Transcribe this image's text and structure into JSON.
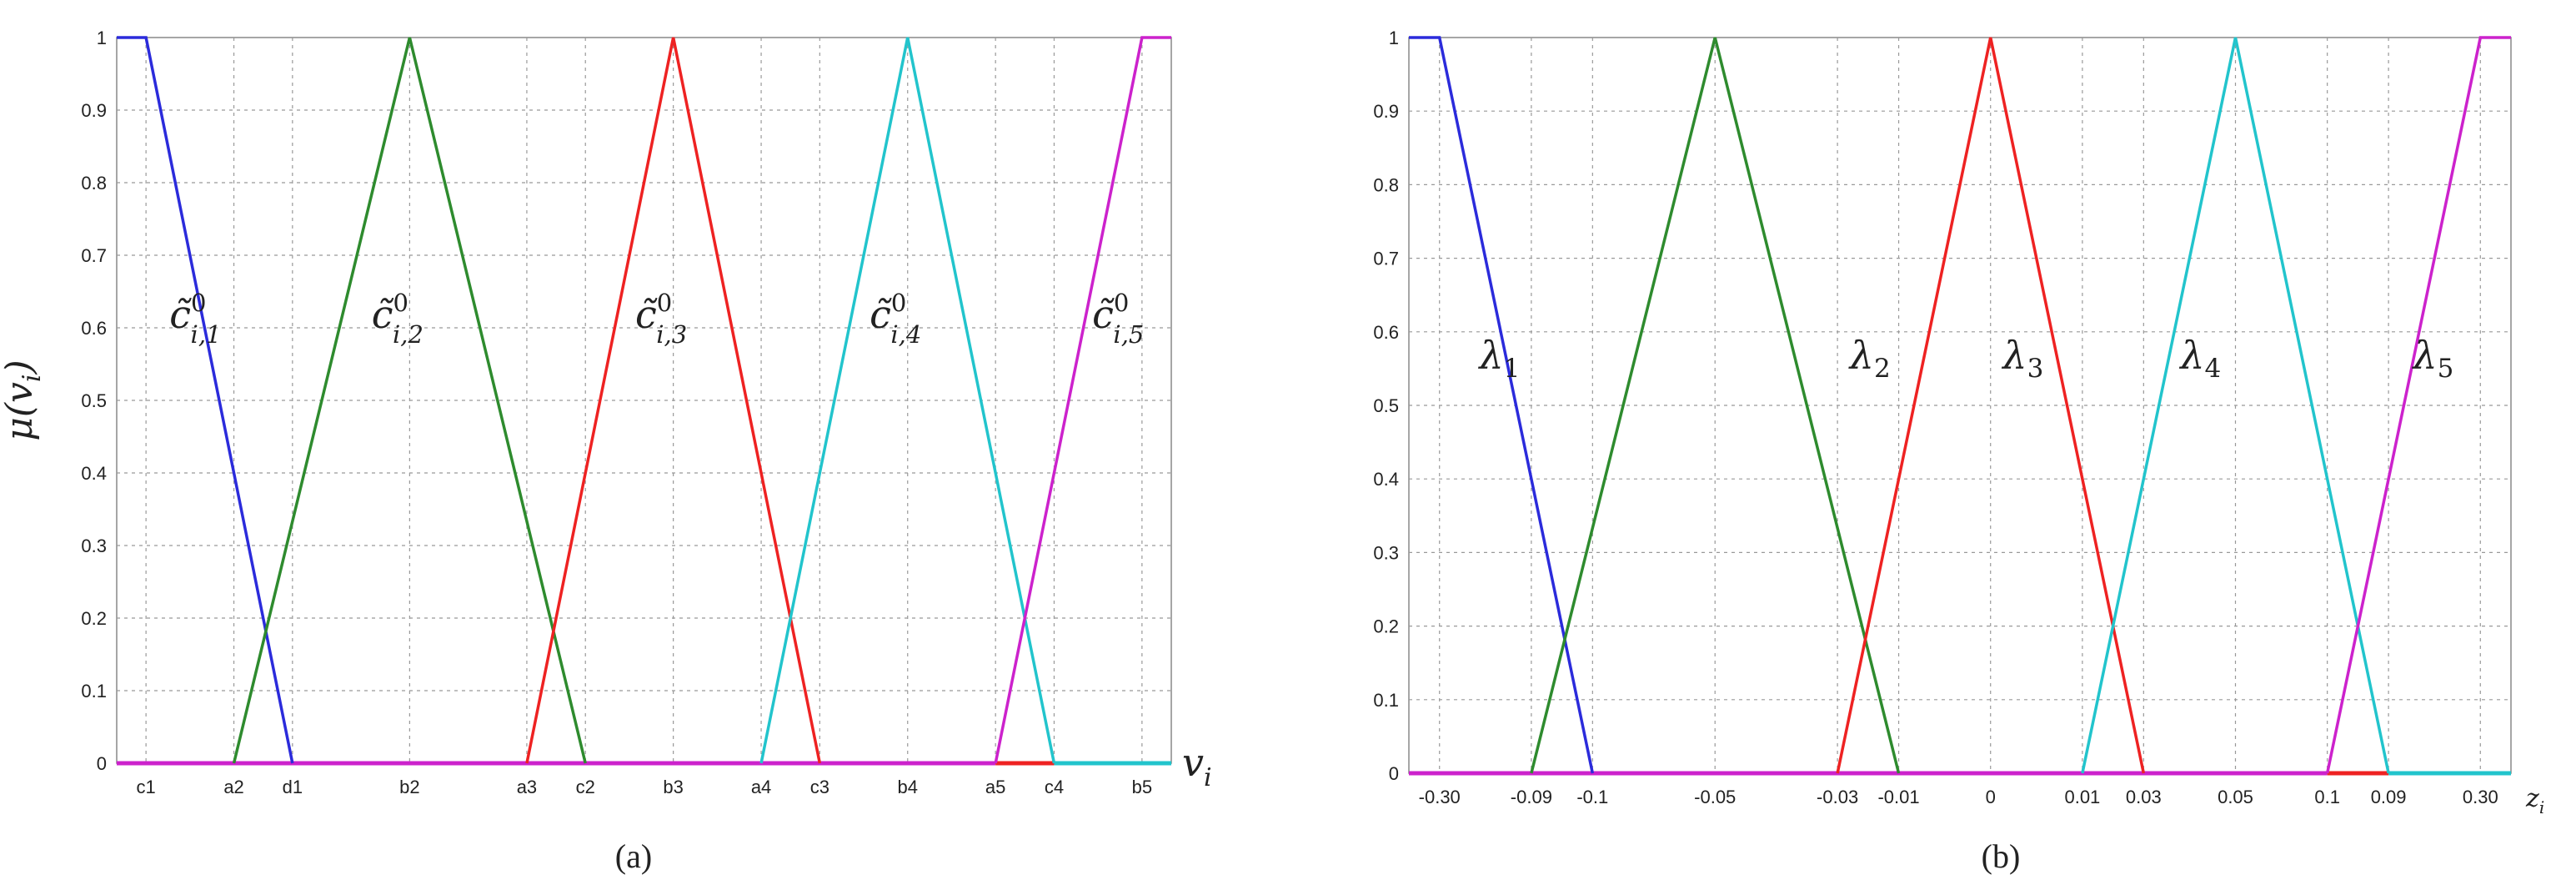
{
  "chart_data": [
    {
      "type": "line",
      "ylabel": "μ(v_i)",
      "xlabel": "v_i",
      "caption": "(a)",
      "ylim": [
        0,
        1
      ],
      "xlim": [
        0,
        18
      ],
      "grid": true,
      "yticks": [
        "0",
        "0.1",
        "0.2",
        "0.3",
        "0.4",
        "0.5",
        "0.6",
        "0.7",
        "0.8",
        "0.9",
        "1"
      ],
      "xticks": [
        {
          "x": 0.5,
          "label": "c1"
        },
        {
          "x": 2.0,
          "label": "a2"
        },
        {
          "x": 3.0,
          "label": "d1"
        },
        {
          "x": 5.0,
          "label": "b2"
        },
        {
          "x": 7.0,
          "label": "a3"
        },
        {
          "x": 8.0,
          "label": "c2"
        },
        {
          "x": 9.5,
          "label": "b3"
        },
        {
          "x": 11.0,
          "label": "a4"
        },
        {
          "x": 12.0,
          "label": "c3"
        },
        {
          "x": 13.5,
          "label": "b4"
        },
        {
          "x": 15.0,
          "label": "a5"
        },
        {
          "x": 16.0,
          "label": "c4"
        },
        {
          "x": 17.5,
          "label": "b5"
        }
      ],
      "series": [
        {
          "name": "c̃⁰ i,1",
          "color": "#2b2bdb",
          "x": [
            0,
            0.5,
            3.0
          ],
          "y": [
            1,
            1,
            0
          ]
        },
        {
          "name": "c̃⁰ i,2",
          "color": "#2e8b2e",
          "x": [
            2.0,
            5.0,
            8.0
          ],
          "y": [
            0,
            1,
            0
          ]
        },
        {
          "name": "c̃⁰ i,3",
          "color": "#ee2222",
          "x": [
            7.0,
            9.5,
            12.0
          ],
          "y": [
            0,
            1,
            0
          ]
        },
        {
          "name": "c̃⁰ i,4",
          "color": "#22c4cc",
          "x": [
            11.0,
            13.5,
            16.0
          ],
          "y": [
            0,
            1,
            0
          ]
        },
        {
          "name": "c̃⁰ i,5",
          "color": "#cc22cc",
          "x": [
            15.0,
            17.5,
            18.0
          ],
          "y": [
            0,
            1,
            1
          ]
        }
      ],
      "baseline_segments": [
        {
          "color": "#cc22cc",
          "x": [
            0,
            15.0
          ]
        },
        {
          "color": "#ee2222",
          "x": [
            15.0,
            16.0
          ]
        },
        {
          "color": "#22c4cc",
          "x": [
            16.0,
            18.0
          ]
        }
      ],
      "labels": [
        {
          "text": "c̃",
          "sup": "0",
          "sub": "i,1",
          "x": 0.9,
          "y": 0.6
        },
        {
          "text": "c̃",
          "sup": "0",
          "sub": "i,2",
          "x": 4.35,
          "y": 0.6
        },
        {
          "text": "c̃",
          "sup": "0",
          "sub": "i,3",
          "x": 8.85,
          "y": 0.6
        },
        {
          "text": "c̃",
          "sup": "0",
          "sub": "i,4",
          "x": 12.85,
          "y": 0.6
        },
        {
          "text": "c̃",
          "sup": "0",
          "sub": "i,5",
          "x": 16.65,
          "y": 0.6
        }
      ]
    },
    {
      "type": "line",
      "ylabel": "",
      "xlabel": "z_i",
      "caption": "(b)",
      "ylim": [
        0,
        1
      ],
      "xlim": [
        0,
        18
      ],
      "grid": true,
      "yticks": [
        "0",
        "0.1",
        "0.2",
        "0.3",
        "0.4",
        "0.5",
        "0.6",
        "0.7",
        "0.8",
        "0.9",
        "1"
      ],
      "xticks": [
        {
          "x": 0.5,
          "label": "-0.30"
        },
        {
          "x": 2.0,
          "label": "-0.09"
        },
        {
          "x": 3.0,
          "label": "-0.1"
        },
        {
          "x": 5.0,
          "label": "-0.05"
        },
        {
          "x": 7.0,
          "label": "-0.03"
        },
        {
          "x": 8.0,
          "label": "-0.01"
        },
        {
          "x": 9.5,
          "label": "0"
        },
        {
          "x": 11.0,
          "label": "0.01"
        },
        {
          "x": 12.0,
          "label": "0.03"
        },
        {
          "x": 13.5,
          "label": "0.05"
        },
        {
          "x": 15.0,
          "label": "0.1"
        },
        {
          "x": 16.0,
          "label": "0.09"
        },
        {
          "x": 17.5,
          "label": "0.30"
        }
      ],
      "series": [
        {
          "name": "λ1",
          "color": "#2b2bdb",
          "x": [
            0,
            0.5,
            3.0
          ],
          "y": [
            1,
            1,
            0
          ]
        },
        {
          "name": "λ2",
          "color": "#2e8b2e",
          "x": [
            2.0,
            5.0,
            8.0
          ],
          "y": [
            0,
            1,
            0
          ]
        },
        {
          "name": "λ3",
          "color": "#ee2222",
          "x": [
            7.0,
            9.5,
            12.0
          ],
          "y": [
            0,
            1,
            0
          ]
        },
        {
          "name": "λ4",
          "color": "#22c4cc",
          "x": [
            11.0,
            13.5,
            16.0
          ],
          "y": [
            0,
            1,
            0
          ]
        },
        {
          "name": "λ5",
          "color": "#cc22cc",
          "x": [
            15.0,
            17.5,
            18.0
          ],
          "y": [
            0,
            1,
            1
          ]
        }
      ],
      "baseline_segments": [
        {
          "color": "#cc22cc",
          "x": [
            0,
            15.0
          ]
        },
        {
          "color": "#ee2222",
          "x": [
            15.0,
            16.0
          ]
        },
        {
          "color": "#22c4cc",
          "x": [
            16.0,
            18.0
          ]
        }
      ],
      "labels": [
        {
          "text": "λ",
          "sub": "1",
          "x": 1.15,
          "y": 0.55
        },
        {
          "text": "λ",
          "sub": "2",
          "x": 7.2,
          "y": 0.55
        },
        {
          "text": "λ",
          "sub": "3",
          "x": 9.7,
          "y": 0.55
        },
        {
          "text": "λ",
          "sub": "4",
          "x": 12.6,
          "y": 0.55
        },
        {
          "text": "λ",
          "sub": "5",
          "x": 16.4,
          "y": 0.55
        }
      ]
    }
  ]
}
